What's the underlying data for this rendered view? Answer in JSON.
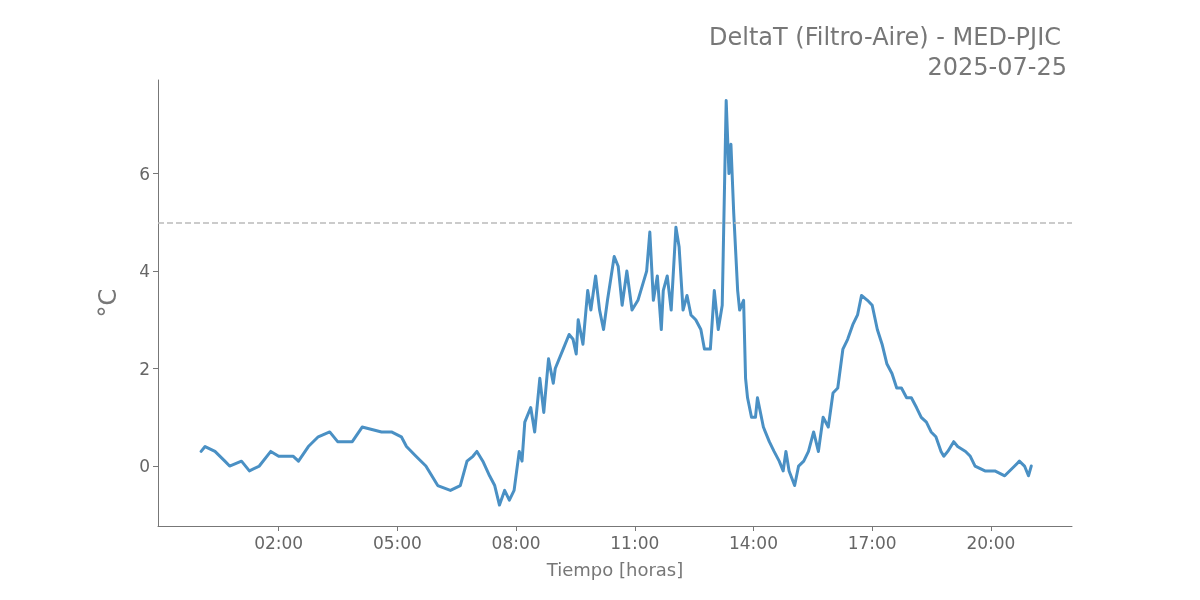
{
  "chart_data": {
    "type": "line",
    "title": "DeltaT (Filtro-Aire) - MED-PJIC",
    "subtitle": "2025-07-25",
    "xlabel": "Tiempo [horas]",
    "ylabel": "°C",
    "xlim": [
      -1.05,
      22.05
    ],
    "xticks": [
      {
        "value": 2,
        "label": "02:00"
      },
      {
        "value": 5,
        "label": "05:00"
      },
      {
        "value": 8,
        "label": "08:00"
      },
      {
        "value": 11,
        "label": "11:00"
      },
      {
        "value": 14,
        "label": "14:00"
      },
      {
        "value": 17,
        "label": "17:00"
      },
      {
        "value": 20,
        "label": "20:00"
      }
    ],
    "ylim": [
      -1.23,
      7.92
    ],
    "yticks": [
      0,
      2,
      4,
      6
    ],
    "grid": false,
    "marker": "none",
    "line_style": "solid",
    "ref_lines": [
      {
        "axis": "y",
        "value": 5,
        "color": "#bbbbbb",
        "line_style": "dashed"
      }
    ],
    "series": [
      {
        "color": "#4a90c4",
        "x": [
          0.04,
          0.14,
          0.39,
          0.64,
          0.76,
          1.06,
          1.26,
          1.51,
          1.8,
          2.0,
          2.37,
          2.5,
          2.75,
          3.0,
          3.29,
          3.49,
          3.86,
          4.11,
          4.6,
          4.85,
          5.1,
          5.23,
          5.47,
          5.72,
          6.02,
          6.34,
          6.59,
          6.76,
          6.91,
          7.01,
          7.16,
          7.33,
          7.46,
          7.58,
          7.71,
          7.83,
          7.95,
          8.08,
          8.15,
          8.22,
          8.37,
          8.47,
          8.6,
          8.7,
          8.82,
          8.94,
          8.99,
          9.19,
          9.34,
          9.44,
          9.52,
          9.57,
          9.69,
          9.81,
          9.89,
          10.01,
          10.11,
          10.21,
          10.31,
          10.48,
          10.58,
          10.68,
          10.8,
          10.93,
          11.08,
          11.3,
          11.38,
          11.47,
          11.57,
          11.67,
          11.72,
          11.82,
          11.92,
          12.04,
          12.12,
          12.22,
          12.32,
          12.42,
          12.54,
          12.67,
          12.76,
          12.91,
          13.01,
          13.11,
          13.21,
          13.31,
          13.38,
          13.43,
          13.5,
          13.6,
          13.65,
          13.75,
          13.8,
          13.85,
          13.95,
          14.05,
          14.1,
          14.25,
          14.4,
          14.52,
          14.65,
          14.75,
          14.82,
          14.9,
          15.04,
          15.14,
          15.27,
          15.39,
          15.52,
          15.64,
          15.76,
          15.89,
          16.01,
          16.13,
          16.26,
          16.38,
          16.51,
          16.63,
          16.73,
          16.88,
          17.0,
          17.13,
          17.25,
          17.37,
          17.5,
          17.62,
          17.74,
          17.87,
          17.99,
          18.12,
          18.24,
          18.37,
          18.49,
          18.61,
          18.74,
          18.81,
          18.91,
          19.06,
          19.16,
          19.36,
          19.48,
          19.6,
          19.85,
          20.1,
          20.35,
          20.6,
          20.72,
          20.85,
          20.95,
          21.02
        ],
        "values": [
          0.3,
          0.4,
          0.3,
          0.1,
          0.0,
          0.1,
          -0.1,
          0.0,
          0.3,
          0.2,
          0.2,
          0.1,
          0.4,
          0.6,
          0.7,
          0.5,
          0.5,
          0.8,
          0.7,
          0.7,
          0.6,
          0.4,
          0.2,
          0.0,
          -0.4,
          -0.5,
          -0.4,
          0.1,
          0.2,
          0.3,
          0.1,
          -0.2,
          -0.4,
          -0.8,
          -0.5,
          -0.7,
          -0.5,
          0.3,
          0.1,
          0.9,
          1.2,
          0.7,
          1.8,
          1.1,
          2.2,
          1.7,
          2.0,
          2.4,
          2.7,
          2.6,
          2.3,
          3.0,
          2.5,
          3.6,
          3.2,
          3.9,
          3.2,
          2.8,
          3.4,
          4.3,
          4.1,
          3.3,
          4.0,
          3.2,
          3.4,
          4.0,
          4.8,
          3.4,
          3.9,
          2.8,
          3.6,
          3.9,
          3.2,
          4.9,
          4.5,
          3.2,
          3.5,
          3.1,
          3.0,
          2.8,
          2.4,
          2.4,
          3.6,
          2.8,
          3.3,
          7.5,
          6.0,
          6.6,
          5.2,
          3.6,
          3.2,
          3.4,
          1.8,
          1.4,
          1.0,
          1.0,
          1.4,
          0.8,
          0.5,
          0.3,
          0.1,
          -0.1,
          0.3,
          -0.1,
          -0.4,
          0.0,
          0.1,
          0.3,
          0.7,
          0.3,
          1.0,
          0.8,
          1.5,
          1.6,
          2.4,
          2.6,
          2.9,
          3.1,
          3.5,
          3.4,
          3.3,
          2.8,
          2.5,
          2.1,
          1.9,
          1.6,
          1.6,
          1.4,
          1.4,
          1.2,
          1.0,
          0.9,
          0.7,
          0.6,
          0.3,
          0.2,
          0.3,
          0.5,
          0.4,
          0.3,
          0.2,
          0.0,
          -0.1,
          -0.1,
          -0.2,
          0.0,
          0.1,
          0.0,
          -0.2,
          0.0
        ]
      }
    ]
  }
}
